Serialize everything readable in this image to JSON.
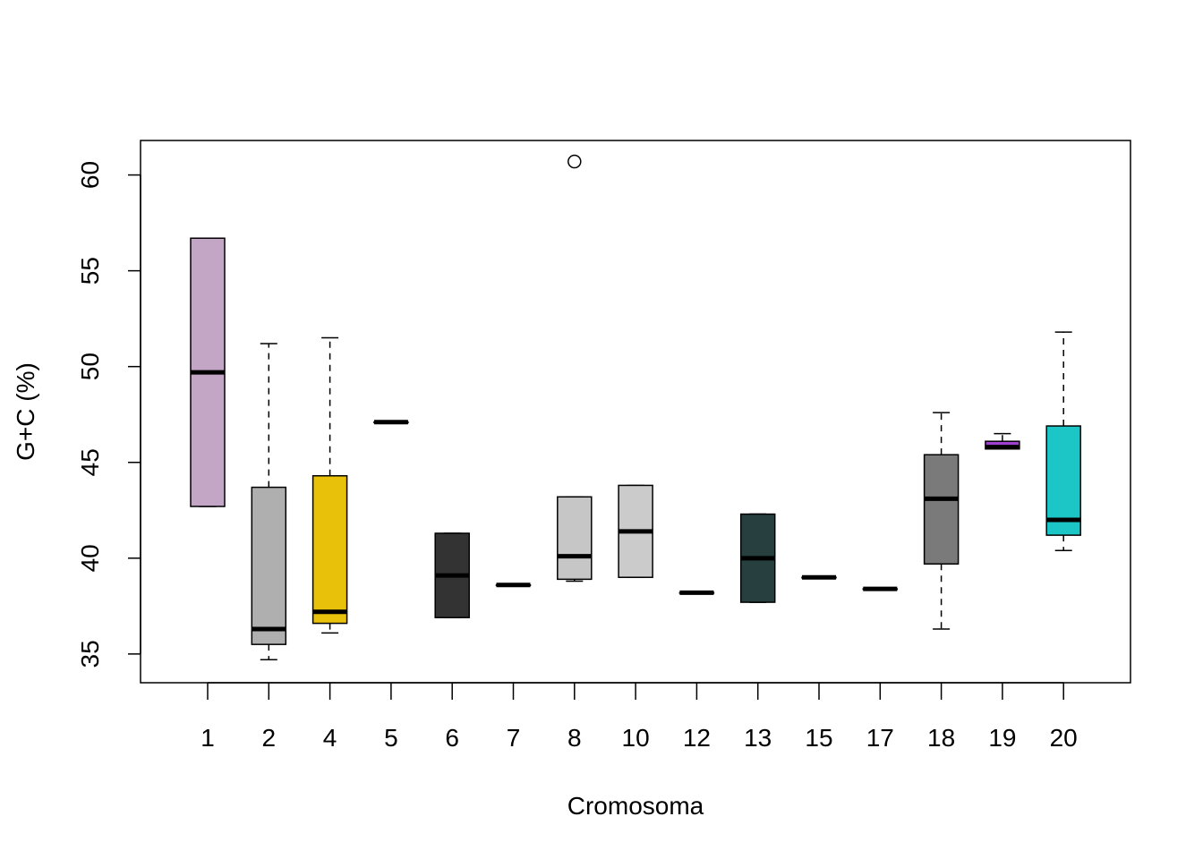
{
  "chart_data": {
    "type": "boxplot",
    "title": "",
    "xlabel": "Cromosoma",
    "ylabel": "G+C (%)",
    "ylim": [
      33.5,
      61.8
    ],
    "yticks": [
      "35",
      "40",
      "45",
      "50",
      "55",
      "60"
    ],
    "grid": false,
    "legend": "none",
    "boxes": [
      {
        "category": "1",
        "color": "#C3A5C5",
        "whisker_low": 42.7,
        "q1": 42.7,
        "median": 49.7,
        "q3": 56.7,
        "whisker_high": 56.7,
        "outliers": []
      },
      {
        "category": "2",
        "color": "#AFAFAF",
        "whisker_low": 34.7,
        "q1": 35.5,
        "median": 36.3,
        "q3": 43.7,
        "whisker_high": 51.2,
        "outliers": []
      },
      {
        "category": "4",
        "color": "#E8C10B",
        "whisker_low": 36.1,
        "q1": 36.6,
        "median": 37.2,
        "q3": 44.3,
        "whisker_high": 51.5,
        "outliers": []
      },
      {
        "category": "5",
        "color": "#555555",
        "whisker_low": 47.1,
        "q1": 47.1,
        "median": 47.1,
        "q3": 47.1,
        "whisker_high": 47.1,
        "outliers": []
      },
      {
        "category": "6",
        "color": "#333333",
        "whisker_low": 36.9,
        "q1": 36.9,
        "median": 39.1,
        "q3": 41.3,
        "whisker_high": 41.3,
        "outliers": []
      },
      {
        "category": "7",
        "color": "#555555",
        "whisker_low": 38.6,
        "q1": 38.6,
        "median": 38.6,
        "q3": 38.6,
        "whisker_high": 38.6,
        "outliers": []
      },
      {
        "category": "8",
        "color": "#C6C6C6",
        "whisker_low": 38.8,
        "q1": 38.9,
        "median": 40.1,
        "q3": 43.2,
        "whisker_high": 43.2,
        "outliers": [
          60.7
        ]
      },
      {
        "category": "10",
        "color": "#CBCBCB",
        "whisker_low": 39.0,
        "q1": 39.0,
        "median": 41.4,
        "q3": 43.8,
        "whisker_high": 43.8,
        "outliers": []
      },
      {
        "category": "12",
        "color": "#555555",
        "whisker_low": 38.2,
        "q1": 38.2,
        "median": 38.2,
        "q3": 38.2,
        "whisker_high": 38.2,
        "outliers": []
      },
      {
        "category": "13",
        "color": "#27403F",
        "whisker_low": 37.7,
        "q1": 37.7,
        "median": 40.0,
        "q3": 42.3,
        "whisker_high": 42.3,
        "outliers": []
      },
      {
        "category": "15",
        "color": "#555555",
        "whisker_low": 39.0,
        "q1": 39.0,
        "median": 39.0,
        "q3": 39.0,
        "whisker_high": 39.0,
        "outliers": []
      },
      {
        "category": "17",
        "color": "#555555",
        "whisker_low": 38.4,
        "q1": 38.4,
        "median": 38.4,
        "q3": 38.4,
        "whisker_high": 38.4,
        "outliers": []
      },
      {
        "category": "18",
        "color": "#7A7A7A",
        "whisker_low": 36.3,
        "q1": 39.7,
        "median": 43.1,
        "q3": 45.4,
        "whisker_high": 47.6,
        "outliers": []
      },
      {
        "category": "19",
        "color": "#A040D0",
        "whisker_low": 45.7,
        "q1": 45.7,
        "median": 45.8,
        "q3": 46.1,
        "whisker_high": 46.5,
        "outliers": []
      },
      {
        "category": "20",
        "color": "#1CC6C6",
        "whisker_low": 40.4,
        "q1": 41.2,
        "median": 42.0,
        "q3": 46.9,
        "whisker_high": 51.8,
        "outliers": []
      }
    ]
  }
}
